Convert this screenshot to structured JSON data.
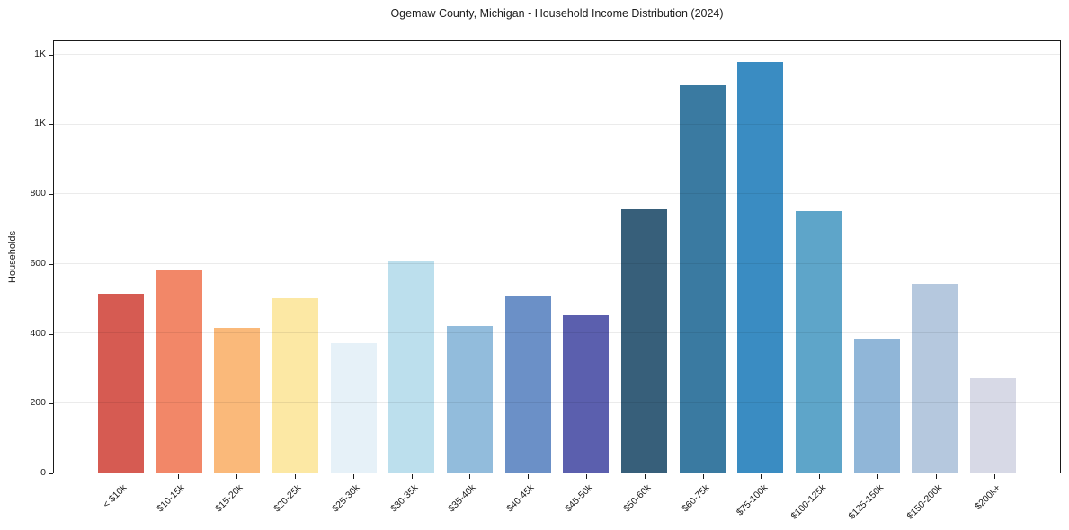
{
  "page": {
    "background": "#ffffff"
  },
  "chart_data": {
    "type": "bar",
    "title": "Ogemaw County, Michigan - Household Income Distribution (2024)",
    "xlabel": "",
    "ylabel": "Households",
    "categories": [
      "< $10k",
      "$10-15k",
      "$15-20k",
      "$20-25k",
      "$25-30k",
      "$30-35k",
      "$35-40k",
      "$40-45k",
      "$45-50k",
      "$50-60k",
      "$60-75k",
      "$75-100k",
      "$100-125k",
      "$125-150k",
      "$150-200k",
      "$200k+"
    ],
    "values": [
      515,
      581,
      415,
      501,
      372,
      608,
      422,
      510,
      451,
      756,
      1114,
      1180,
      753,
      386,
      543,
      270
    ],
    "bar_colors": [
      "#d65b52",
      "#f28768",
      "#fab97a",
      "#fce8a4",
      "#e6f1f8",
      "#bcdfed",
      "#92bcdc",
      "#6b90c7",
      "#5b5fae",
      "#375f7a",
      "#3a7aa1",
      "#3a8cc2",
      "#5ea5c9",
      "#90b6d8",
      "#b5c8de",
      "#d7d9e6"
    ],
    "ylim": [
      0,
      1240
    ],
    "yticks": [
      {
        "value": 0,
        "label": "0"
      },
      {
        "value": 200,
        "label": "200"
      },
      {
        "value": 400,
        "label": "400"
      },
      {
        "value": 600,
        "label": "600"
      },
      {
        "value": 800,
        "label": "800"
      },
      {
        "value": 1000,
        "label": "1K"
      },
      {
        "value": 1200,
        "label": "1K"
      }
    ],
    "grid": "horizontal",
    "gridline_color": "rgba(0,0,0,0.08)",
    "spine_color": "#1a1a1a",
    "legend": "none"
  }
}
